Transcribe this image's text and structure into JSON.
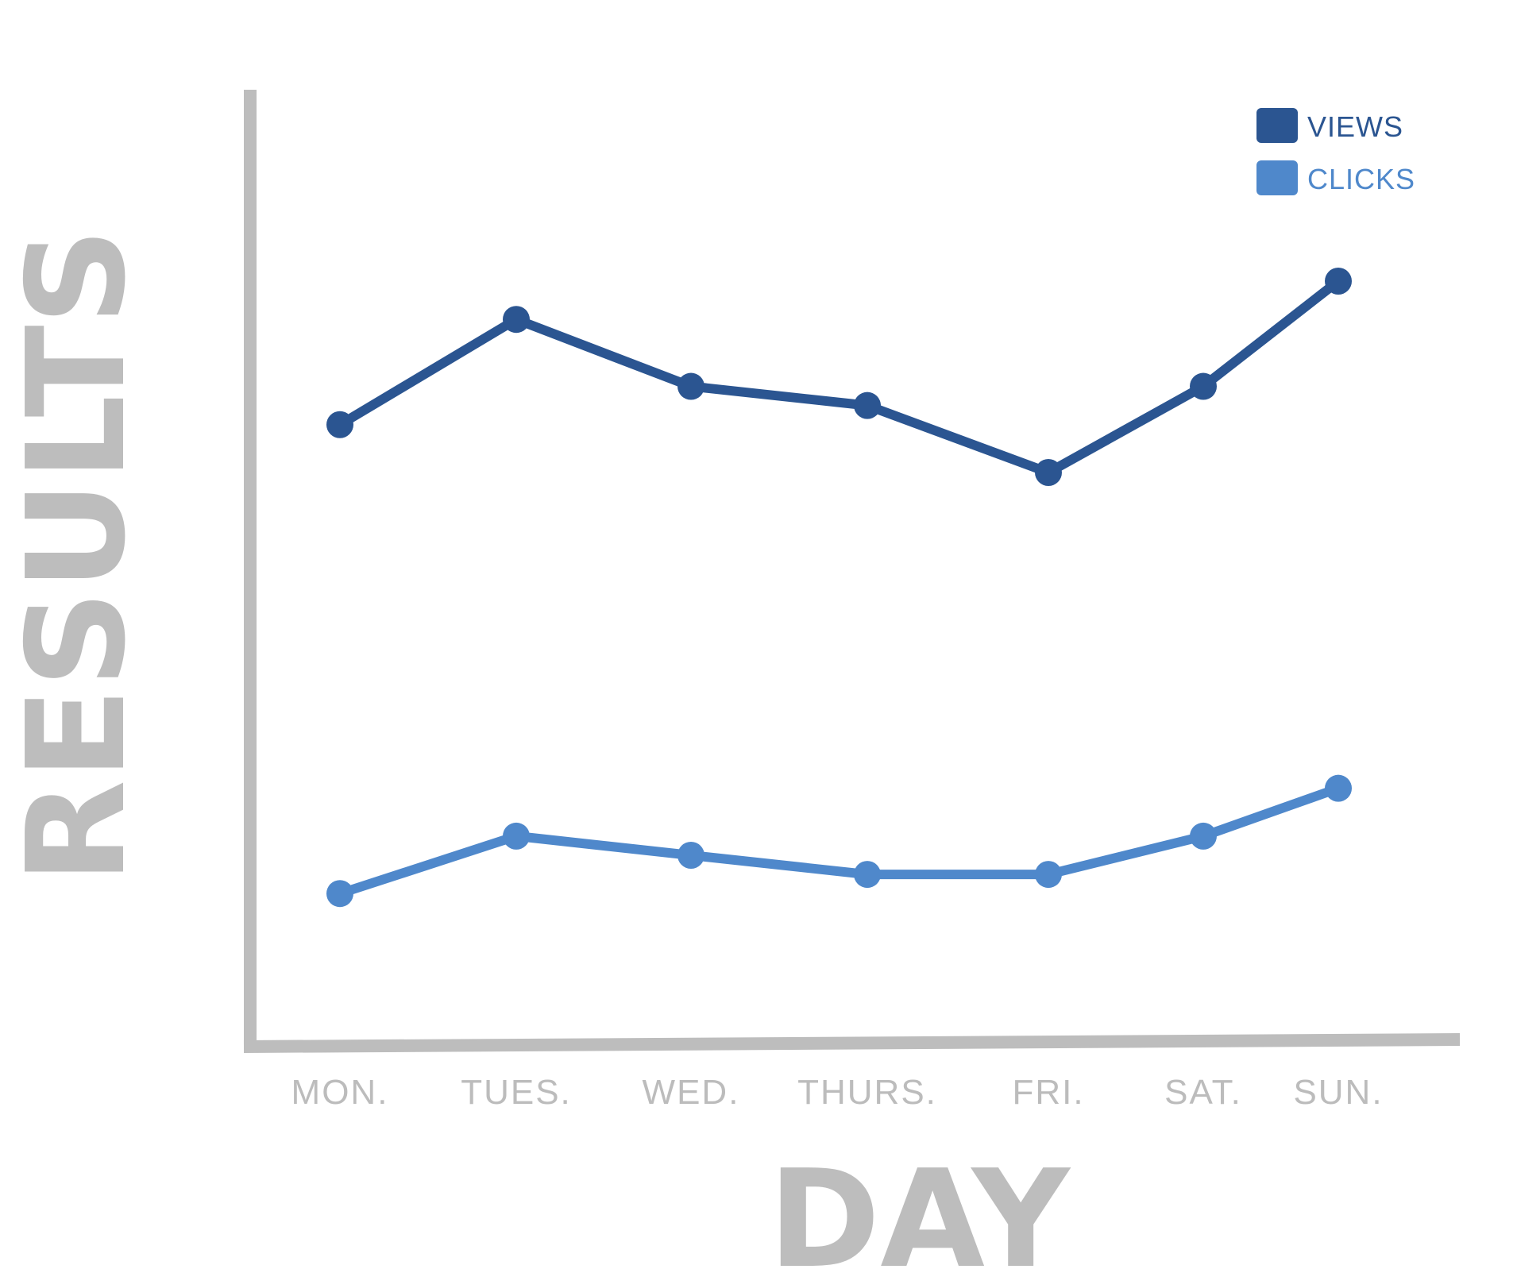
{
  "chart_data": {
    "type": "line",
    "title": "",
    "xlabel": "DAY",
    "ylabel": "RESULTS",
    "categories": [
      "MON.",
      "TUES.",
      "WED.",
      "THURS.",
      "FRI.",
      "SAT.",
      "SUN."
    ],
    "series": [
      {
        "name": "VIEWS",
        "color": "#2b5591",
        "values": [
          6.5,
          7.6,
          6.9,
          6.7,
          6.0,
          6.9,
          8.0
        ]
      },
      {
        "name": "CLICKS",
        "color": "#4f88cb",
        "values": [
          1.6,
          2.2,
          2.0,
          1.8,
          1.8,
          2.2,
          2.7
        ]
      }
    ],
    "ylim": [
      0,
      10
    ],
    "grid": false,
    "legend_position": "top-right"
  },
  "colors": {
    "axis": "#bdbdbd",
    "views": "#2b5591",
    "clicks": "#4f88cb",
    "background": "#ffffff"
  }
}
